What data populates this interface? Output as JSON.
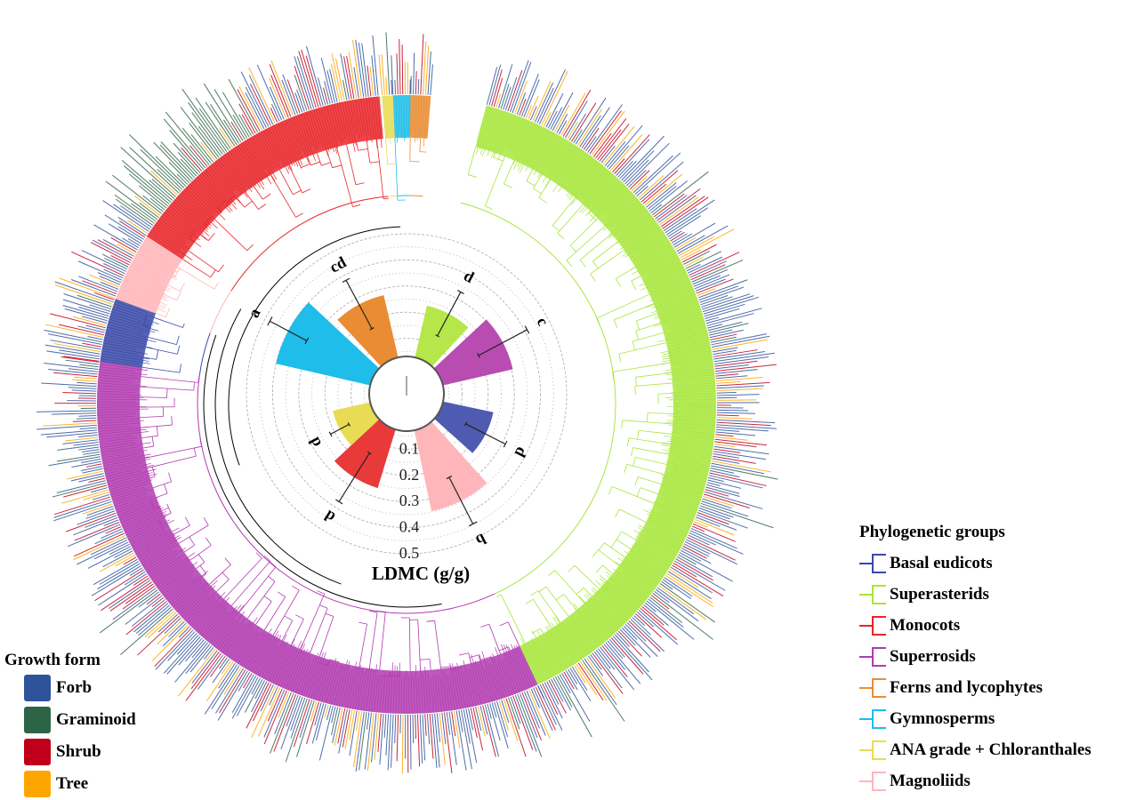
{
  "chart_data": {
    "type": "bar",
    "subtype": "radial",
    "categories": [
      "Gymnosperms",
      "Ferns and lycophytes",
      "Superasterids",
      "Superrosids",
      "Basal eudicots",
      "Magnoliids",
      "Monocots",
      "ANA grade + Chloranthales"
    ],
    "values": [
      0.4,
      0.275,
      0.234,
      0.305,
      0.227,
      0.347,
      0.265,
      0.177
    ],
    "error": [
      0.08,
      0.105,
      0.095,
      0.105,
      0.085,
      0.1,
      0.11,
      0.04
    ],
    "letters": [
      "a",
      "cd",
      "d",
      "c",
      "d",
      "b",
      "d",
      "d"
    ],
    "colors": [
      "#1fbde9",
      "#ea8c33",
      "#b5e64a",
      "#b94cb0",
      "#4e5bb0",
      "#ffb6ba",
      "#e93a3a",
      "#e8dc55"
    ],
    "ylabel": "LDMC (g/g)",
    "ylim": [
      0,
      0.5
    ],
    "ticks": [
      "0.1",
      "0.2",
      "0.3",
      "0.4",
      "0.5"
    ],
    "grid": true
  },
  "phylo_legend": {
    "title": "Phylogenetic groups",
    "items": [
      {
        "label": "Basal eudicots",
        "color": "#3a49a8"
      },
      {
        "label": "Superasterids",
        "color": "#a8e63c"
      },
      {
        "label": "Monocots",
        "color": "#e8262a"
      },
      {
        "label": "Superrosids",
        "color": "#b23bb0"
      },
      {
        "label": "Ferns and lycophytes",
        "color": "#ea8c33"
      },
      {
        "label": "Gymnosperms",
        "color": "#1fbde9"
      },
      {
        "label": "ANA grade + Chloranthales",
        "color": "#e8dc55"
      },
      {
        "label": "Magnoliids",
        "color": "#ffb6ba"
      }
    ]
  },
  "growth_legend": {
    "title": "Growth form",
    "items": [
      {
        "label": "Forb",
        "color": "#2f539b"
      },
      {
        "label": "Graminoid",
        "color": "#2e6446"
      },
      {
        "label": "Shrub",
        "color": "#c0001a"
      },
      {
        "label": "Tree",
        "color": "#ffa500"
      }
    ]
  }
}
